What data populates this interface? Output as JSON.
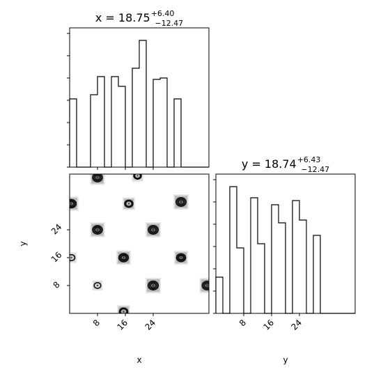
{
  "chart_data": {
    "type": "corner",
    "x_title": {
      "label": "x",
      "median": "18.75",
      "plus": "+6.40",
      "minus": "−12.47"
    },
    "y_title": {
      "label": "y",
      "median": "18.74",
      "plus": "+6.43",
      "minus": "−12.47"
    },
    "xlabel": "x",
    "ylabel": "y",
    "xlim": [
      0,
      40
    ],
    "ylim": [
      0,
      40
    ],
    "ticks": [
      8,
      16,
      24
    ],
    "tick_labels": [
      "8",
      "16",
      "24"
    ],
    "hist_x": {
      "bin_edges": [
        0,
        2,
        4,
        6,
        8,
        10,
        12,
        14,
        16,
        18,
        20,
        22,
        24,
        26,
        28,
        30,
        32,
        34,
        36,
        38,
        40
      ],
      "values": [
        0.49,
        0,
        0,
        0.52,
        0.65,
        0,
        0.65,
        0.58,
        0,
        0.71,
        0.91,
        0,
        0.63,
        0.64,
        0,
        0.49,
        0,
        0,
        0,
        0
      ]
    },
    "hist_y": {
      "bin_edges": [
        0,
        2,
        4,
        6,
        8,
        10,
        12,
        14,
        16,
        18,
        20,
        22,
        24,
        26,
        28,
        30,
        32,
        34,
        36,
        38,
        40
      ],
      "values": [
        0.26,
        0,
        0.91,
        0.47,
        0,
        0.83,
        0.5,
        0,
        0.78,
        0.65,
        0,
        0.81,
        0.67,
        0,
        0.56,
        0,
        0,
        0,
        0,
        0
      ]
    },
    "clusters_2d": [
      {
        "x": 8,
        "y": 39,
        "density": 0.9
      },
      {
        "x": 19.5,
        "y": 39.5,
        "density": 0.4
      },
      {
        "x": 0.5,
        "y": 31.5,
        "density": 0.85
      },
      {
        "x": 17,
        "y": 31.5,
        "density": 0.55
      },
      {
        "x": 32,
        "y": 32,
        "density": 0.95
      },
      {
        "x": 8,
        "y": 24,
        "density": 0.9
      },
      {
        "x": 24,
        "y": 24,
        "density": 0.95
      },
      {
        "x": 0.5,
        "y": 16,
        "density": 0.25
      },
      {
        "x": 15.5,
        "y": 16,
        "density": 0.85
      },
      {
        "x": 32,
        "y": 16,
        "density": 0.75
      },
      {
        "x": 8,
        "y": 8,
        "density": 0.2
      },
      {
        "x": 24,
        "y": 8,
        "density": 1.0
      },
      {
        "x": 39.5,
        "y": 8,
        "density": 0.95
      },
      {
        "x": 15.5,
        "y": 0.5,
        "density": 0.6
      }
    ]
  }
}
